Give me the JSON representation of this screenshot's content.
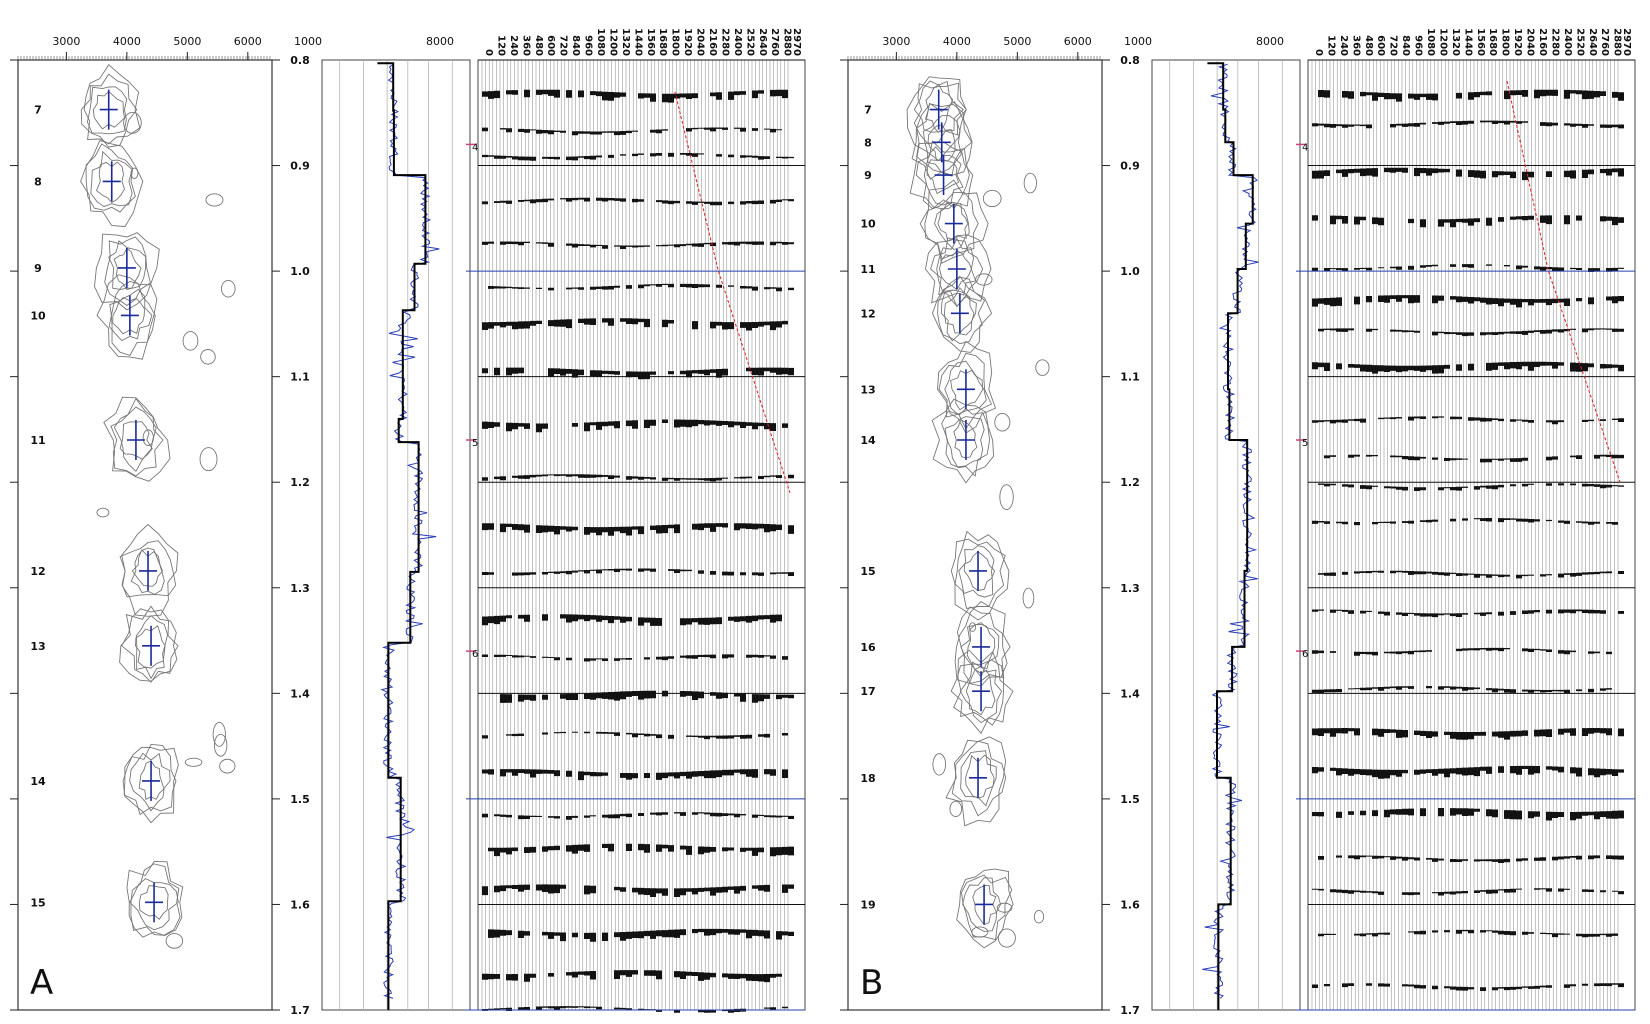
{
  "chart_data": [
    {
      "type": "contour",
      "panel_label": "A",
      "x_ticks": [
        "3000",
        "4000",
        "5000",
        "6000"
      ],
      "time_ticks": [
        "0.8",
        "0.9",
        "1.0",
        "1.1",
        "1.2",
        "1.3",
        "1.4",
        "1.5",
        "1.6",
        "1.7"
      ],
      "time_range": [
        0.8,
        1.7
      ],
      "velocity_range": [
        2200,
        6400
      ],
      "picks": [
        {
          "label": "7",
          "time": 0.847,
          "velocity": 3700
        },
        {
          "label": "8",
          "time": 0.915,
          "velocity": 3750
        },
        {
          "label": "9",
          "time": 0.997,
          "velocity": 4000
        },
        {
          "label": "10",
          "time": 1.042,
          "velocity": 4050
        },
        {
          "label": "11",
          "time": 1.16,
          "velocity": 4150
        },
        {
          "label": "12",
          "time": 1.284,
          "velocity": 4350
        },
        {
          "label": "13",
          "time": 1.355,
          "velocity": 4400
        },
        {
          "label": "14",
          "time": 1.483,
          "velocity": 4400
        },
        {
          "label": "15",
          "time": 1.598,
          "velocity": 4450
        }
      ],
      "log": {
        "x_ticks": [
          "1000",
          "8000"
        ],
        "blocky_interval_velocity": [
          {
            "time": 0.803,
            "velocity": 3000
          },
          {
            "time": 0.803,
            "velocity": 4150
          },
          {
            "time": 0.848,
            "velocity": 4150
          },
          {
            "time": 0.848,
            "velocity": 4200
          },
          {
            "time": 0.909,
            "velocity": 4200
          },
          {
            "time": 0.909,
            "velocity": 6500
          },
          {
            "time": 0.993,
            "velocity": 6500
          },
          {
            "time": 0.993,
            "velocity": 5700
          },
          {
            "time": 1.037,
            "velocity": 5700
          },
          {
            "time": 1.037,
            "velocity": 4850
          },
          {
            "time": 1.14,
            "velocity": 4850
          },
          {
            "time": 1.14,
            "velocity": 4550
          },
          {
            "time": 1.162,
            "velocity": 4550
          },
          {
            "time": 1.162,
            "velocity": 6000
          },
          {
            "time": 1.285,
            "velocity": 6000
          },
          {
            "time": 1.285,
            "velocity": 5400
          },
          {
            "time": 1.352,
            "velocity": 5400
          },
          {
            "time": 1.352,
            "velocity": 3800
          },
          {
            "time": 1.48,
            "velocity": 3800
          },
          {
            "time": 1.48,
            "velocity": 4700
          },
          {
            "time": 1.597,
            "velocity": 4700
          },
          {
            "time": 1.597,
            "velocity": 3800
          },
          {
            "time": 1.7,
            "velocity": 3800
          }
        ]
      },
      "gather": {
        "offset_ticks": [
          "0",
          "120",
          "240",
          "360",
          "480",
          "600",
          "720",
          "840",
          "960",
          "1080",
          "1200",
          "1320",
          "1440",
          "1560",
          "1680",
          "1800",
          "1920",
          "2040",
          "2160",
          "2280",
          "2400",
          "2520",
          "2640",
          "2760",
          "2880",
          "2970"
        ],
        "horizon_markers": [
          {
            "label": "4",
            "time": 0.88
          },
          {
            "label": "5",
            "time": 1.16
          },
          {
            "label": "6",
            "time": 1.36
          }
        ],
        "mute_line": [
          {
            "offset": 1860,
            "time": 0.83
          },
          {
            "offset": 2280,
            "time": 1.0
          },
          {
            "offset": 2970,
            "time": 1.21
          }
        ]
      }
    },
    {
      "type": "contour",
      "panel_label": "B",
      "x_ticks": [
        "3000",
        "4000",
        "5000",
        "6000"
      ],
      "time_ticks": [
        "0.8",
        "0.9",
        "1.0",
        "1.1",
        "1.2",
        "1.3",
        "1.4",
        "1.5",
        "1.6",
        "1.7"
      ],
      "time_range": [
        0.8,
        1.7
      ],
      "velocity_range": [
        2200,
        6400
      ],
      "picks": [
        {
          "label": "7",
          "time": 0.847,
          "velocity": 3700
        },
        {
          "label": "8",
          "time": 0.878,
          "velocity": 3750
        },
        {
          "label": "9",
          "time": 0.909,
          "velocity": 3780
        },
        {
          "label": "10",
          "time": 0.955,
          "velocity": 3950
        },
        {
          "label": "11",
          "time": 0.998,
          "velocity": 4000
        },
        {
          "label": "12",
          "time": 1.04,
          "velocity": 4050
        },
        {
          "label": "13",
          "time": 1.112,
          "velocity": 4150
        },
        {
          "label": "14",
          "time": 1.16,
          "velocity": 4150
        },
        {
          "label": "15",
          "time": 1.284,
          "velocity": 4350
        },
        {
          "label": "16",
          "time": 1.356,
          "velocity": 4400
        },
        {
          "label": "17",
          "time": 1.398,
          "velocity": 4400
        },
        {
          "label": "18",
          "time": 1.48,
          "velocity": 4350
        },
        {
          "label": "19",
          "time": 1.6,
          "velocity": 4450
        }
      ],
      "log": {
        "x_ticks": [
          "1000",
          "8000"
        ],
        "blocky_interval_velocity": [
          {
            "time": 0.803,
            "velocity": 3000
          },
          {
            "time": 0.803,
            "velocity": 4150
          },
          {
            "time": 0.847,
            "velocity": 4150
          },
          {
            "time": 0.847,
            "velocity": 4300
          },
          {
            "time": 0.878,
            "velocity": 4300
          },
          {
            "time": 0.878,
            "velocity": 4900
          },
          {
            "time": 0.909,
            "velocity": 4900
          },
          {
            "time": 0.909,
            "velocity": 6300
          },
          {
            "time": 0.955,
            "velocity": 6300
          },
          {
            "time": 0.955,
            "velocity": 5800
          },
          {
            "time": 0.998,
            "velocity": 5800
          },
          {
            "time": 0.998,
            "velocity": 5200
          },
          {
            "time": 1.04,
            "velocity": 5200
          },
          {
            "time": 1.04,
            "velocity": 4500
          },
          {
            "time": 1.112,
            "velocity": 4500
          },
          {
            "time": 1.112,
            "velocity": 4600
          },
          {
            "time": 1.16,
            "velocity": 4600
          },
          {
            "time": 1.16,
            "velocity": 5900
          },
          {
            "time": 1.284,
            "velocity": 5900
          },
          {
            "time": 1.284,
            "velocity": 5700
          },
          {
            "time": 1.356,
            "velocity": 5700
          },
          {
            "time": 1.356,
            "velocity": 4800
          },
          {
            "time": 1.398,
            "velocity": 4800
          },
          {
            "time": 1.398,
            "velocity": 3700
          },
          {
            "time": 1.48,
            "velocity": 3700
          },
          {
            "time": 1.48,
            "velocity": 4700
          },
          {
            "time": 1.6,
            "velocity": 4700
          },
          {
            "time": 1.6,
            "velocity": 3800
          },
          {
            "time": 1.7,
            "velocity": 3800
          }
        ]
      },
      "gather": {
        "offset_ticks": [
          "0",
          "120",
          "240",
          "360",
          "480",
          "600",
          "720",
          "840",
          "960",
          "1080",
          "1200",
          "1320",
          "1440",
          "1560",
          "1680",
          "1800",
          "1920",
          "2040",
          "2160",
          "2280",
          "2400",
          "2520",
          "2640",
          "2760",
          "2880",
          "2970"
        ],
        "horizon_markers": [
          {
            "label": "4",
            "time": 0.88
          },
          {
            "label": "5",
            "time": 1.16
          },
          {
            "label": "6",
            "time": 1.36
          }
        ],
        "mute_line": [
          {
            "offset": 1880,
            "time": 0.82
          },
          {
            "offset": 2280,
            "time": 1.0
          },
          {
            "offset": 2970,
            "time": 1.2
          }
        ]
      }
    }
  ]
}
